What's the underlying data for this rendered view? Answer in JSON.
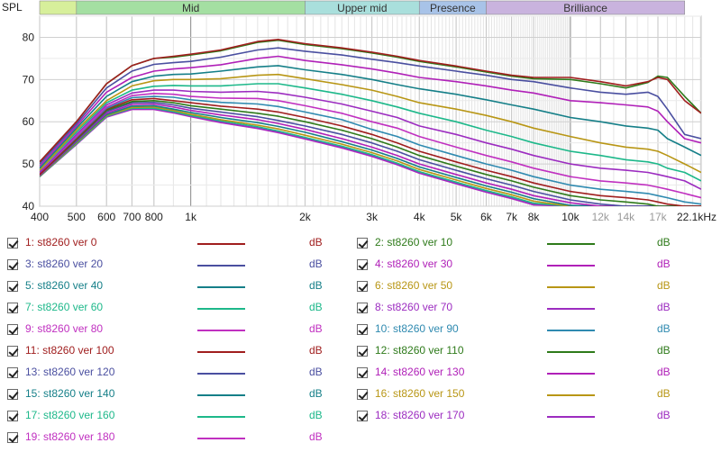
{
  "chart_data": {
    "type": "line",
    "ylabel": "SPL",
    "x_scale": "log",
    "xlim": [
      400,
      22100
    ],
    "ylim": [
      40,
      85
    ],
    "grid": true,
    "x_tick_labels": [
      {
        "f": 400,
        "t": "400"
      },
      {
        "f": 500,
        "t": "500"
      },
      {
        "f": 600,
        "t": "600"
      },
      {
        "f": 700,
        "t": "700"
      },
      {
        "f": 800,
        "t": "800"
      },
      {
        "f": 1000,
        "t": "1k"
      },
      {
        "f": 2000,
        "t": "2k"
      },
      {
        "f": 3000,
        "t": "3k"
      },
      {
        "f": 4000,
        "t": "4k"
      },
      {
        "f": 5000,
        "t": "5k"
      },
      {
        "f": 6000,
        "t": "6k"
      },
      {
        "f": 7000,
        "t": "7k"
      },
      {
        "f": 8000,
        "t": "8k"
      },
      {
        "f": 10000,
        "t": "10k"
      },
      {
        "f": 12000,
        "t": "12k",
        "muted": true
      },
      {
        "f": 14000,
        "t": "14k",
        "muted": true
      },
      {
        "f": 17000,
        "t": "17k",
        "muted": true
      },
      {
        "f": 22100,
        "t": "22.1kHz"
      }
    ],
    "y_tick_labels": [
      {
        "v": 40,
        "t": "40"
      },
      {
        "v": 50,
        "t": "50"
      },
      {
        "v": 60,
        "t": "60"
      },
      {
        "v": 70,
        "t": "70"
      },
      {
        "v": 80,
        "t": "80"
      }
    ],
    "bands": [
      {
        "label": "",
        "from": 400,
        "to": 500,
        "color": "#d7ef9b"
      },
      {
        "label": "Mid",
        "from": 500,
        "to": 2000,
        "color": "#a4dfa2"
      },
      {
        "label": "Upper mid",
        "from": 2000,
        "to": 4000,
        "color": "#a9dfdc"
      },
      {
        "label": "Presence",
        "from": 4000,
        "to": 6000,
        "color": "#a8c3e8"
      },
      {
        "label": "Brilliance",
        "from": 6000,
        "to": 20000,
        "color": "#c9b3de"
      }
    ],
    "freqs": [
      400,
      500,
      600,
      700,
      800,
      900,
      1000,
      1200,
      1500,
      1700,
      2000,
      2500,
      3000,
      3500,
      4000,
      5000,
      6000,
      7000,
      8000,
      10000,
      12000,
      14000,
      16000,
      17000,
      18000,
      20000,
      22100
    ],
    "series": [
      {
        "name": "1: st8260 ver 0",
        "color": "#a01e1e",
        "values": [
          50.5,
          60,
          69,
          73.3,
          75,
          75.5,
          76,
          77,
          79,
          79.5,
          78.5,
          77.5,
          76.5,
          75.5,
          74.5,
          73.2,
          72,
          71,
          70.5,
          70.5,
          69.5,
          68.5,
          69.5,
          70.5,
          70,
          65,
          62
        ]
      },
      {
        "name": "2: st8260 ver 10",
        "color": "#2e7a1a",
        "values": [
          50.5,
          60,
          69,
          73.3,
          75,
          75.3,
          75.8,
          76.8,
          78.8,
          79.3,
          78.3,
          77.3,
          76.3,
          75.3,
          74.3,
          73,
          71.8,
          70.8,
          70.2,
          70,
          69,
          68,
          69.3,
          70.8,
          70.5,
          66,
          62
        ]
      },
      {
        "name": "3: st8260 ver 20",
        "color": "#4a4fa0",
        "values": [
          50,
          59.5,
          68,
          72,
          73.6,
          74,
          74.3,
          75.3,
          77,
          77.5,
          76.7,
          75.8,
          74.8,
          74,
          73.2,
          72,
          71,
          70,
          69.5,
          68,
          67,
          66.5,
          67,
          66,
          63,
          57,
          56
        ]
      },
      {
        "name": "4: st8260 ver 30",
        "color": "#b020b8",
        "values": [
          49.5,
          59,
          67,
          70.5,
          72,
          72.5,
          72.8,
          73.5,
          75,
          75.5,
          74.5,
          73.5,
          72.5,
          71.5,
          70.5,
          69.5,
          68.5,
          67.5,
          66.8,
          65,
          64.5,
          64,
          63.5,
          62.5,
          60,
          56,
          55
        ]
      },
      {
        "name": "5: st8260 ver 40",
        "color": "#157f88",
        "values": [
          49,
          58.5,
          66,
          69.5,
          70.8,
          71.2,
          71.3,
          72,
          73,
          73.3,
          72.3,
          71.2,
          70,
          68.8,
          67.8,
          66.5,
          65.2,
          64,
          63,
          61,
          60,
          59,
          58.5,
          58,
          56,
          54,
          52
        ]
      },
      {
        "name": "6: st8260 ver 50",
        "color": "#b89615",
        "values": [
          48.5,
          58,
          65,
          68.5,
          69.7,
          70,
          70,
          70.2,
          71,
          71.2,
          70.2,
          68.8,
          67.5,
          66,
          64.5,
          63,
          61.5,
          60,
          58.5,
          56.5,
          55,
          54,
          53.5,
          53,
          52,
          50,
          48
        ]
      },
      {
        "name": "7: st8260 ver 60",
        "color": "#1db88a",
        "values": [
          48.5,
          57.5,
          64.5,
          67.5,
          68.4,
          68.6,
          68.5,
          68.5,
          69,
          69,
          68,
          66.5,
          65,
          63.5,
          62,
          60,
          58,
          56.5,
          55,
          53,
          52,
          51,
          50.5,
          50,
          49,
          48,
          46
        ]
      },
      {
        "name": "8: st8260 ver 70",
        "color": "#9c2cc0",
        "values": [
          48,
          57,
          64,
          66.8,
          67.5,
          67.5,
          67.2,
          67,
          67.2,
          66.8,
          65.8,
          64.2,
          62.5,
          61,
          59,
          57,
          55,
          53.5,
          52,
          50,
          49,
          48.5,
          48,
          47.5,
          47,
          46,
          44
        ]
      },
      {
        "name": "9: st8260 ver 80",
        "color": "#c030c0",
        "values": [
          48,
          56.5,
          63.5,
          66.2,
          66.7,
          66.5,
          66,
          65.6,
          65.5,
          65,
          63.8,
          62,
          60,
          58.5,
          56.5,
          54,
          52,
          50.5,
          49,
          47,
          46,
          45.5,
          45,
          44.5,
          44,
          43,
          42
        ]
      },
      {
        "name": "10: st8260 ver 90",
        "color": "#2f8ab0",
        "values": [
          48,
          56.3,
          63.2,
          65.7,
          66,
          65.8,
          65.2,
          64.6,
          64.2,
          63.6,
          62.3,
          60.5,
          58.2,
          56.5,
          54.5,
          52,
          50,
          48.5,
          47,
          45,
          44,
          43.5,
          43,
          42.5,
          42,
          41,
          40.5
        ]
      },
      {
        "name": "11: st8260 ver 100",
        "color": "#a01e1e",
        "values": [
          47.5,
          56,
          63,
          65.2,
          65.5,
          65,
          64.5,
          63.7,
          63,
          62.3,
          61,
          59,
          57,
          55,
          53,
          50.5,
          48.5,
          47,
          45.5,
          43.5,
          42.5,
          42,
          41.5,
          41,
          40.5,
          40,
          40
        ]
      },
      {
        "name": "12: st8260 ver 110",
        "color": "#2e7a1a",
        "values": [
          47.5,
          55.8,
          62.7,
          64.8,
          65,
          64.5,
          63.8,
          63,
          62,
          61.3,
          60,
          58,
          56,
          54,
          52,
          49.5,
          47.5,
          46,
          44.5,
          42.5,
          41.5,
          41,
          40.5,
          40,
          40,
          40,
          40
        ]
      },
      {
        "name": "13: st8260 ver 120",
        "color": "#4a4fa0",
        "values": [
          47.5,
          55.6,
          62.4,
          64.5,
          64.6,
          64,
          63.2,
          62.3,
          61.2,
          60.3,
          59,
          57,
          55,
          53,
          51,
          48.5,
          46.5,
          45,
          43.5,
          41.5,
          40.5,
          40,
          40,
          40,
          40,
          40,
          40
        ]
      },
      {
        "name": "14: st8260 ver 130",
        "color": "#b020b8",
        "values": [
          47.3,
          55.4,
          62,
          64.1,
          64.2,
          63.5,
          62.7,
          61.6,
          60.5,
          59.6,
          58.2,
          56,
          54,
          52,
          50,
          47.5,
          45.5,
          44,
          42.5,
          40.8,
          40,
          40,
          40,
          40,
          40,
          40,
          40
        ]
      },
      {
        "name": "15: st8260 ver 140",
        "color": "#157f88",
        "values": [
          47.2,
          55.2,
          61.7,
          63.7,
          63.8,
          63,
          62.2,
          61,
          59.8,
          58.9,
          57.5,
          55.3,
          53.3,
          51.3,
          49.3,
          46.8,
          44.8,
          43.3,
          41.8,
          40.2,
          40,
          40,
          40,
          40,
          40,
          40,
          40
        ]
      },
      {
        "name": "16: st8260 ver 150",
        "color": "#b89615",
        "values": [
          47.1,
          55,
          61.5,
          63.4,
          63.5,
          62.7,
          61.8,
          60.5,
          59.2,
          58.3,
          56.8,
          54.7,
          52.7,
          50.7,
          48.7,
          46.2,
          44.2,
          42.7,
          41.2,
          40,
          40,
          40,
          40,
          40,
          40,
          40,
          40
        ]
      },
      {
        "name": "17: st8260 ver 160",
        "color": "#1db88a",
        "values": [
          47,
          54.8,
          61.3,
          63.2,
          63.2,
          62.4,
          61.5,
          60.2,
          58.8,
          57.8,
          56.3,
          54.2,
          52.2,
          50.2,
          48.2,
          45.7,
          43.7,
          42.2,
          40.7,
          40,
          40,
          40,
          40,
          40,
          40,
          40,
          40
        ]
      },
      {
        "name": "18: st8260 ver 170",
        "color": "#9c2cc0",
        "values": [
          47,
          54.7,
          61.2,
          63,
          63,
          62.2,
          61.3,
          59.9,
          58.5,
          57.5,
          56,
          53.9,
          51.9,
          49.9,
          47.9,
          45.4,
          43.4,
          41.9,
          40.4,
          40,
          40,
          40,
          40,
          40,
          40,
          40,
          40
        ]
      },
      {
        "name": "19: st8260 ver 180",
        "color": "#c030c0",
        "values": [
          47,
          54.6,
          61.1,
          62.9,
          62.9,
          62.1,
          61.2,
          59.8,
          58.4,
          57.4,
          55.9,
          53.8,
          51.8,
          49.8,
          47.8,
          45.3,
          43.3,
          41.8,
          40.3,
          40,
          40,
          40,
          40,
          40,
          40,
          40,
          40
        ]
      }
    ]
  },
  "legend": {
    "unit_label": "dB",
    "items": [
      {
        "label": "1: st8260 ver 0",
        "color": "#a01e1e",
        "unit": "dB"
      },
      {
        "label": "2: st8260 ver 10",
        "color": "#2e7a1a",
        "unit": "dB"
      },
      {
        "label": "3: st8260 ver 20",
        "color": "#4a4fa0",
        "unit": "dB"
      },
      {
        "label": "4: st8260 ver 30",
        "color": "#b020b8",
        "unit": "dB"
      },
      {
        "label": "5: st8260 ver 40",
        "color": "#157f88",
        "unit": "dB"
      },
      {
        "label": "6: st8260 ver 50",
        "color": "#b89615",
        "unit": "dB"
      },
      {
        "label": "7: st8260 ver 60",
        "color": "#1db88a",
        "unit": "dB"
      },
      {
        "label": "8: st8260 ver 70",
        "color": "#9c2cc0",
        "unit": "dB"
      },
      {
        "label": "9: st8260 ver 80",
        "color": "#c030c0",
        "unit": "dB"
      },
      {
        "label": "10: st8260 ver 90",
        "color": "#2f8ab0",
        "unit": "dB"
      },
      {
        "label": "11: st8260 ver 100",
        "color": "#a01e1e",
        "unit": "dB"
      },
      {
        "label": "12: st8260 ver 110",
        "color": "#2e7a1a",
        "unit": "dB"
      },
      {
        "label": "13: st8260 ver 120",
        "color": "#4a4fa0",
        "unit": "dB"
      },
      {
        "label": "14: st8260 ver 130",
        "color": "#b020b8",
        "unit": "dB"
      },
      {
        "label": "15: st8260 ver 140",
        "color": "#157f88",
        "unit": "dB"
      },
      {
        "label": "16: st8260 ver 150",
        "color": "#b89615",
        "unit": "dB"
      },
      {
        "label": "17: st8260 ver 160",
        "color": "#1db88a",
        "unit": "dB"
      },
      {
        "label": "18: st8260 ver 170",
        "color": "#9c2cc0",
        "unit": "dB"
      },
      {
        "label": "19: st8260 ver 180",
        "color": "#c030c0",
        "unit": "dB"
      }
    ]
  }
}
